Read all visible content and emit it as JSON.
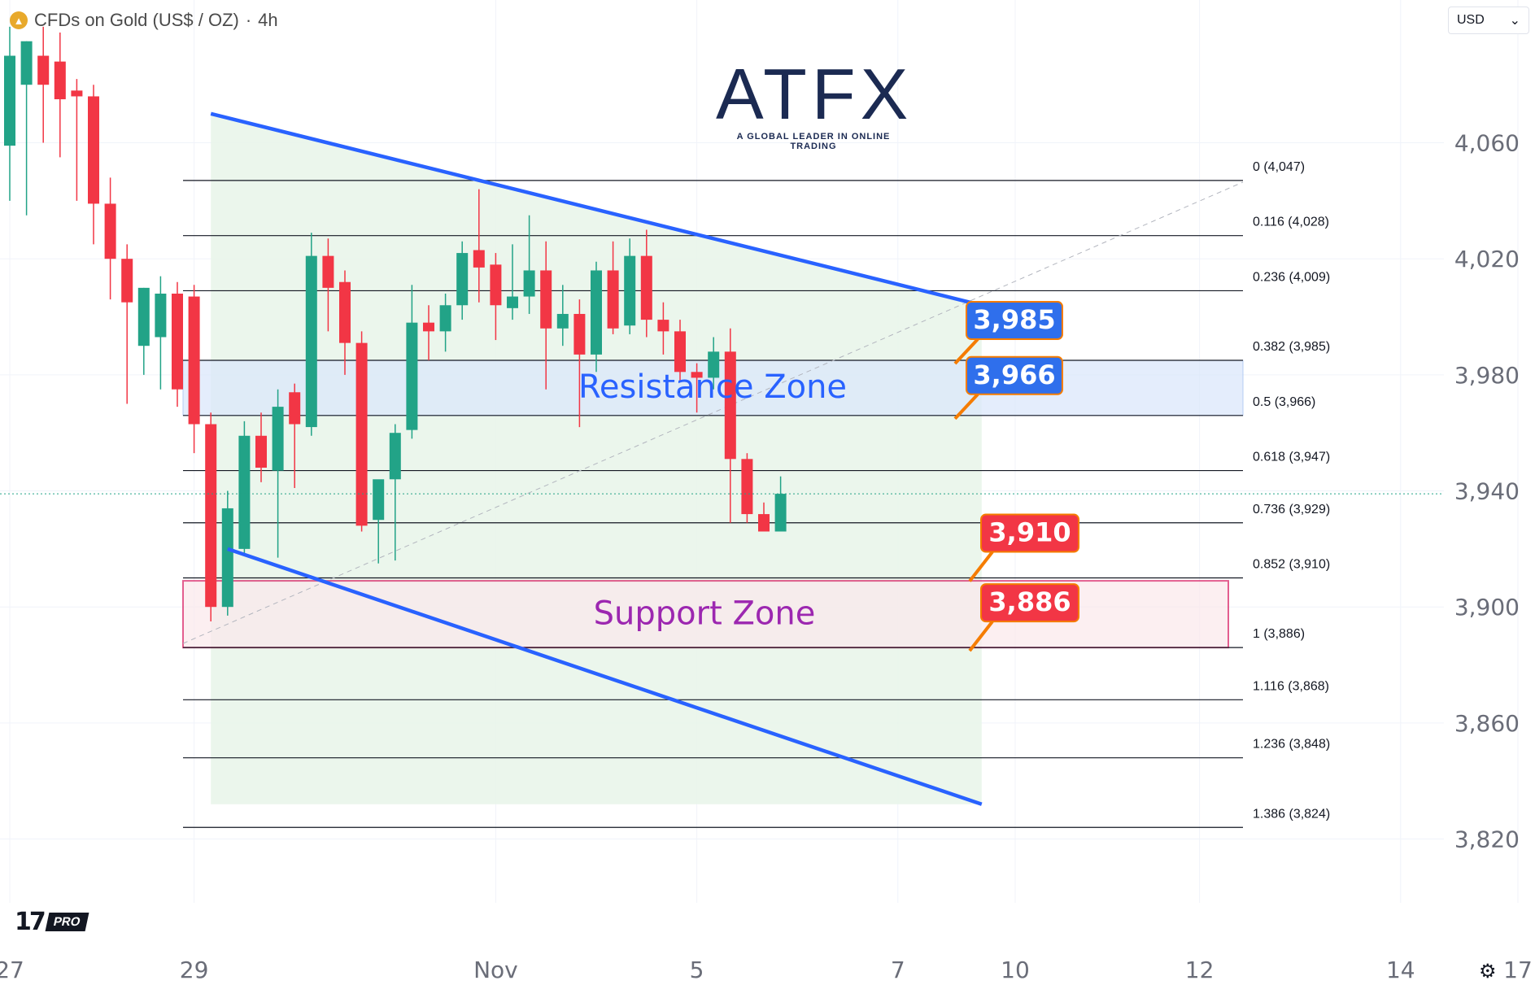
{
  "header": {
    "symbol_title": "CFDs on Gold (US$ / OZ)",
    "interval": "4h",
    "separator": "·",
    "currency": "USD",
    "gold_icon": "gold-coin-icon"
  },
  "branding": {
    "atfx_logo_text": "ATFX",
    "atfx_tagline": "A GLOBAL LEADER IN ONLINE TRADING",
    "tv_pro": "PRO",
    "tv_mark": "17",
    "settings_icon": "gear-icon"
  },
  "colors": {
    "up": "#22a387",
    "down": "#f23645",
    "channel": "#2962ff",
    "channel_fill": "#e8f5e9",
    "resistance_fill": "#dbe8fb",
    "support_fill": "#fbe9ec",
    "support_border": "#d81b60",
    "resistance_label": "#2962ff",
    "support_label": "#9c27b0",
    "callout_blue": "#2f6fec",
    "callout_red": "#f23645",
    "callout_border": "#f57c00"
  },
  "chart_data": {
    "type": "candlestick",
    "ylim": [
      3798,
      4098
    ],
    "y_ticks": [
      "4,060",
      "4,020",
      "3,980",
      "3,940",
      "3,900",
      "3,860",
      "3,820"
    ],
    "y_tick_values": [
      4060,
      4020,
      3980,
      3940,
      3900,
      3860,
      3820
    ],
    "x_ticks": [
      "27",
      "29",
      "Nov",
      "5",
      "7",
      "10",
      "12",
      "14",
      "17"
    ],
    "x_tick_bars": [
      -37,
      -26,
      -8,
      4,
      16,
      23,
      34,
      46,
      53
    ],
    "current_price": 3939,
    "candles": [
      {
        "o": 4059,
        "h": 4100,
        "l": 4040,
        "c": 4090
      },
      {
        "o": 4080,
        "h": 4095,
        "l": 4035,
        "c": 4095
      },
      {
        "o": 4090,
        "h": 4100,
        "l": 4060,
        "c": 4080
      },
      {
        "o": 4088,
        "h": 4098,
        "l": 4055,
        "c": 4075
      },
      {
        "o": 4078,
        "h": 4082,
        "l": 4040,
        "c": 4076
      },
      {
        "o": 4076,
        "h": 4080,
        "l": 4025,
        "c": 4039
      },
      {
        "o": 4039,
        "h": 4048,
        "l": 4006,
        "c": 4020
      },
      {
        "o": 4020,
        "h": 4025,
        "l": 3970,
        "c": 4005
      },
      {
        "o": 3990,
        "h": 4010,
        "l": 3980,
        "c": 4010
      },
      {
        "o": 3993,
        "h": 4014,
        "l": 3975,
        "c": 4008
      },
      {
        "o": 4008,
        "h": 4012,
        "l": 3969,
        "c": 3975
      },
      {
        "o": 4007,
        "h": 4011,
        "l": 3953,
        "c": 3963
      },
      {
        "o": 3963,
        "h": 3967,
        "l": 3895,
        "c": 3900
      },
      {
        "o": 3900,
        "h": 3940,
        "l": 3897,
        "c": 3934
      },
      {
        "o": 3920,
        "h": 3964,
        "l": 3918,
        "c": 3959
      },
      {
        "o": 3959,
        "h": 3967,
        "l": 3943,
        "c": 3948
      },
      {
        "o": 3947,
        "h": 3975,
        "l": 3917,
        "c": 3969
      },
      {
        "o": 3974,
        "h": 3977,
        "l": 3941,
        "c": 3963
      },
      {
        "o": 3962,
        "h": 4029,
        "l": 3959,
        "c": 4021
      },
      {
        "o": 4021,
        "h": 4027,
        "l": 3995,
        "c": 4010
      },
      {
        "o": 4012,
        "h": 4016,
        "l": 3980,
        "c": 3991
      },
      {
        "o": 3991,
        "h": 3995,
        "l": 3926,
        "c": 3928
      },
      {
        "o": 3930,
        "h": 3942,
        "l": 3915,
        "c": 3944
      },
      {
        "o": 3944,
        "h": 3963,
        "l": 3916,
        "c": 3960
      },
      {
        "o": 3961,
        "h": 4011,
        "l": 3958,
        "c": 3998
      },
      {
        "o": 3998,
        "h": 4004,
        "l": 3985,
        "c": 3995
      },
      {
        "o": 3995,
        "h": 4008,
        "l": 3988,
        "c": 4004
      },
      {
        "o": 4004,
        "h": 4026,
        "l": 3999,
        "c": 4022
      },
      {
        "o": 4023,
        "h": 4044,
        "l": 4005,
        "c": 4017
      },
      {
        "o": 4018,
        "h": 4022,
        "l": 3992,
        "c": 4004
      },
      {
        "o": 4003,
        "h": 4025,
        "l": 3999,
        "c": 4007
      },
      {
        "o": 4007,
        "h": 4035,
        "l": 4001,
        "c": 4016
      },
      {
        "o": 4016,
        "h": 4026,
        "l": 3975,
        "c": 3996
      },
      {
        "o": 3996,
        "h": 4011,
        "l": 3990,
        "c": 4001
      },
      {
        "o": 4001,
        "h": 4006,
        "l": 3962,
        "c": 3987
      },
      {
        "o": 3987,
        "h": 4019,
        "l": 3981,
        "c": 4016
      },
      {
        "o": 4016,
        "h": 4026,
        "l": 3994,
        "c": 3996
      },
      {
        "o": 3997,
        "h": 4027,
        "l": 3994,
        "c": 4021
      },
      {
        "o": 4021,
        "h": 4030,
        "l": 3993,
        "c": 3999
      },
      {
        "o": 3999,
        "h": 4005,
        "l": 3987,
        "c": 3995
      },
      {
        "o": 3995,
        "h": 3999,
        "l": 3978,
        "c": 3981
      },
      {
        "o": 3981,
        "h": 3984,
        "l": 3967,
        "c": 3979
      },
      {
        "o": 3979,
        "h": 3993,
        "l": 3975,
        "c": 3988
      },
      {
        "o": 3988,
        "h": 3996,
        "l": 3929,
        "c": 3951
      },
      {
        "o": 3951,
        "h": 3953,
        "l": 3929,
        "c": 3932
      },
      {
        "o": 3932,
        "h": 3936,
        "l": 3927,
        "c": 3926
      },
      {
        "o": 3926,
        "h": 3945,
        "l": 3928,
        "c": 3939
      }
    ],
    "fib_levels": [
      {
        "ratio": "0",
        "value": 4047,
        "label": "0 (4,047)"
      },
      {
        "ratio": "0.116",
        "value": 4028,
        "label": "0.116 (4,028)"
      },
      {
        "ratio": "0.236",
        "value": 4009,
        "label": "0.236 (4,009)"
      },
      {
        "ratio": "0.382",
        "value": 3985,
        "label": "0.382 (3,985)"
      },
      {
        "ratio": "0.5",
        "value": 3966,
        "label": "0.5 (3,966)"
      },
      {
        "ratio": "0.618",
        "value": 3947,
        "label": "0.618 (3,947)"
      },
      {
        "ratio": "0.736",
        "value": 3929,
        "label": "0.736 (3,929)"
      },
      {
        "ratio": "0.852",
        "value": 3910,
        "label": "0.852 (3,910)"
      },
      {
        "ratio": "1",
        "value": 3886,
        "label": "1 (3,886)"
      },
      {
        "ratio": "1.116",
        "value": 3868,
        "label": "1.116 (3,868)"
      },
      {
        "ratio": "1.236",
        "value": 3848,
        "label": "1.236 (3,848)"
      },
      {
        "ratio": "1.386",
        "value": 3824,
        "label": "1.386 (3,824)"
      }
    ],
    "channel": {
      "upper": [
        {
          "bar": 12,
          "y": 4070
        },
        {
          "bar": 58,
          "y": 4004
        }
      ],
      "lower": [
        {
          "bar": 13,
          "y": 3920
        },
        {
          "bar": 58,
          "y": 3832
        }
      ]
    },
    "zones": [
      {
        "name": "Resistance Zone",
        "top": 3985,
        "bottom": 3966
      },
      {
        "name": "Support Zone",
        "top": 3909,
        "bottom": 3886
      }
    ],
    "callouts": [
      {
        "text": "3,985",
        "value": 3985,
        "style": "blue"
      },
      {
        "text": "3,966",
        "value": 3966,
        "style": "blue"
      },
      {
        "text": "3,910",
        "value": 3910,
        "style": "red"
      },
      {
        "text": "3,886",
        "value": 3886,
        "style": "red"
      }
    ]
  }
}
